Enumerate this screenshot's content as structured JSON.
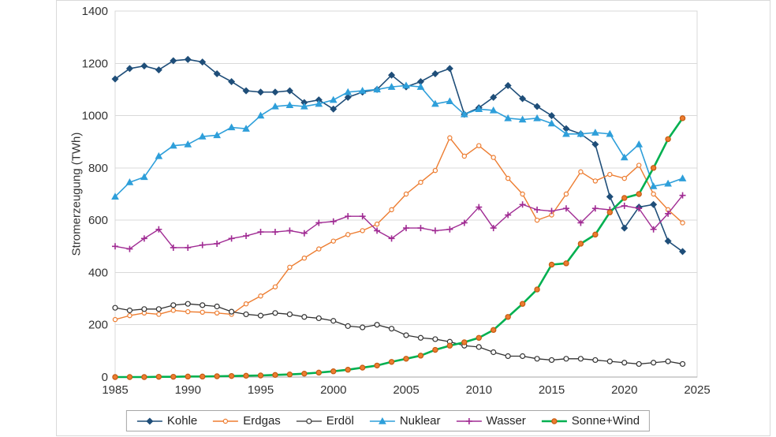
{
  "chart_data": {
    "type": "line",
    "title": "",
    "xlabel": "",
    "ylabel": "Stromerzeugung (TWh)",
    "x_start": 1985,
    "x_step": 1,
    "xlim": [
      1985,
      2025
    ],
    "ylim": [
      0,
      1400
    ],
    "x_ticks": [
      1985,
      1990,
      1995,
      2000,
      2005,
      2010,
      2015,
      2020,
      2025
    ],
    "y_ticks": [
      0,
      200,
      400,
      600,
      800,
      1000,
      1200,
      1400
    ],
    "grid": "horizontal-y",
    "legend_position": "bottom-center",
    "grid_color": "#D9D9D9",
    "axis_color": "#A6A6A6",
    "text_color": "#333333",
    "series": [
      {
        "id": "kohle",
        "name": "Kohle",
        "color": "#1F4E79",
        "line_width": 1.6,
        "marker": {
          "shape": "diamond",
          "size": 3.8,
          "fill": "#1F4E79",
          "stroke": "#1F4E79"
        },
        "values": [
          1140,
          1180,
          1190,
          1175,
          1210,
          1215,
          1205,
          1160,
          1130,
          1095,
          1090,
          1090,
          1095,
          1050,
          1060,
          1025,
          1070,
          1090,
          1100,
          1155,
          1110,
          1130,
          1160,
          1180,
          1005,
          1030,
          1070,
          1115,
          1065,
          1035,
          1000,
          950,
          930,
          890,
          690,
          570,
          650,
          660,
          520,
          480
        ]
      },
      {
        "id": "erdgas",
        "name": "Erdgas",
        "color": "#ED7D31",
        "line_width": 1.4,
        "marker": {
          "shape": "circle",
          "size": 2.6,
          "fill": "#FFFFFF",
          "stroke": "#ED7D31"
        },
        "values": [
          220,
          235,
          245,
          240,
          255,
          250,
          248,
          245,
          240,
          280,
          310,
          345,
          420,
          455,
          490,
          520,
          545,
          560,
          585,
          640,
          700,
          745,
          790,
          915,
          845,
          885,
          840,
          760,
          700,
          600,
          620,
          700,
          785,
          750,
          775,
          760,
          810,
          700,
          640,
          590
        ]
      },
      {
        "id": "erdoel",
        "name": "Erdöl",
        "color": "#333333",
        "line_width": 1.3,
        "marker": {
          "shape": "circle",
          "size": 3.0,
          "fill": "#FFFFFF",
          "stroke": "#333333"
        },
        "values": [
          265,
          255,
          260,
          260,
          275,
          280,
          275,
          270,
          250,
          240,
          235,
          245,
          240,
          230,
          225,
          215,
          195,
          190,
          200,
          185,
          160,
          150,
          145,
          135,
          120,
          115,
          95,
          80,
          80,
          70,
          65,
          70,
          70,
          65,
          60,
          55,
          50,
          55,
          60,
          50
        ]
      },
      {
        "id": "nuklear",
        "name": "Nuklear",
        "color": "#2E9FDA",
        "line_width": 1.6,
        "marker": {
          "shape": "triangle",
          "size": 4.0,
          "fill": "#2E9FDA",
          "stroke": "#2E9FDA"
        },
        "values": [
          690,
          745,
          765,
          845,
          885,
          890,
          920,
          925,
          955,
          950,
          1000,
          1035,
          1040,
          1035,
          1045,
          1060,
          1090,
          1095,
          1100,
          1110,
          1115,
          1110,
          1045,
          1055,
          1005,
          1025,
          1020,
          990,
          985,
          990,
          970,
          930,
          930,
          935,
          930,
          840,
          890,
          730,
          740,
          760
        ]
      },
      {
        "id": "wasser",
        "name": "Wasser",
        "color": "#A02B93",
        "line_width": 1.4,
        "marker": {
          "shape": "plus",
          "size": 4.0,
          "fill": "none",
          "stroke": "#A02B93"
        },
        "values": [
          500,
          490,
          530,
          565,
          495,
          495,
          505,
          510,
          530,
          540,
          555,
          555,
          560,
          550,
          590,
          595,
          615,
          615,
          560,
          530,
          570,
          570,
          560,
          565,
          590,
          650,
          570,
          620,
          660,
          640,
          635,
          645,
          590,
          645,
          640,
          655,
          645,
          565,
          625,
          695
        ]
      },
      {
        "id": "sonne-wind",
        "name": "Sonne+Wind",
        "color": "#00B050",
        "line_width": 2.6,
        "marker": {
          "shape": "circle",
          "size": 3.1,
          "fill": "#ED7D31",
          "stroke": "#C55A11"
        },
        "values": [
          0,
          0,
          0,
          1,
          1,
          2,
          2,
          3,
          4,
          5,
          6,
          8,
          10,
          13,
          17,
          22,
          28,
          36,
          44,
          58,
          70,
          82,
          104,
          120,
          133,
          150,
          180,
          230,
          280,
          335,
          430,
          435,
          510,
          545,
          630,
          685,
          700,
          800,
          910,
          990
        ]
      }
    ]
  }
}
